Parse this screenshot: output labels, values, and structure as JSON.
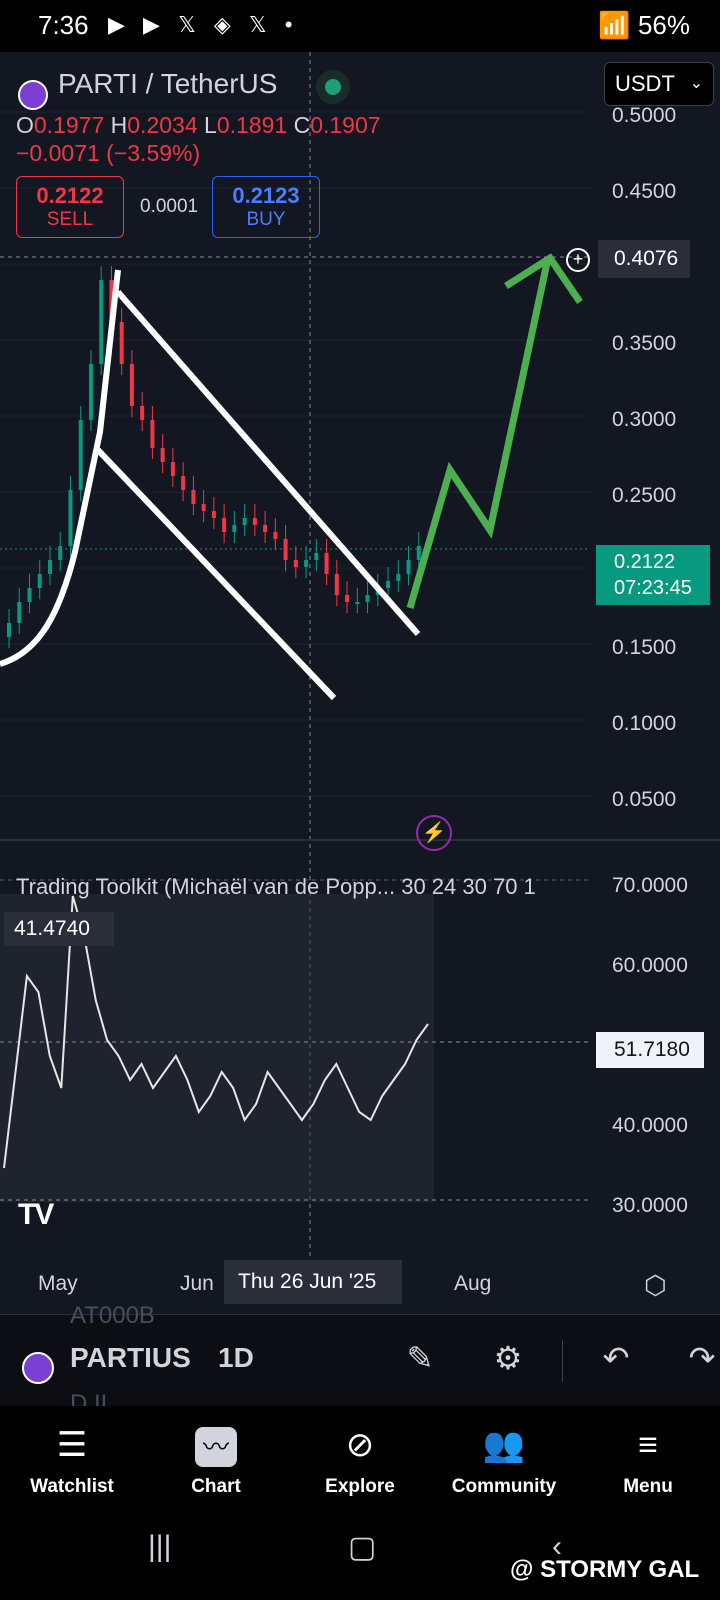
{
  "status_bar": {
    "time": "7:36",
    "battery": "56%",
    "notification_icons": "▶ ▶ 𝕏 ◈ 𝕏 •"
  },
  "header": {
    "symbol": "PARTI / TetherUS",
    "currency": "USDT",
    "ohlc": {
      "o_label": "O",
      "o": "0.1977",
      "h_label": "H",
      "h": "0.2034",
      "l_label": "L",
      "l": "0.1891",
      "c_label": "C",
      "c": "0.1907"
    },
    "change": "−0.0071 (−3.59%)"
  },
  "trade": {
    "sell_price": "0.2122",
    "sell_label": "SELL",
    "spread": "0.0001",
    "buy_price": "0.2123",
    "buy_label": "BUY"
  },
  "price_axis": {
    "ticks": [
      "0.5000",
      "0.4500",
      "0.4076",
      "0.3500",
      "0.3000",
      "0.2500",
      "0.1500",
      "0.1000",
      "0.0500"
    ],
    "crosshair_price": "0.4076",
    "current_price": "0.2122",
    "countdown": "07:23:45"
  },
  "indicator": {
    "title": "Trading Toolkit (Michaël van de Popp... 30 24 30 70 1",
    "hover_value": "41.4740",
    "current_value": "51.7180",
    "ticks": [
      "70.0000",
      "60.0000",
      "40.0000",
      "30.0000"
    ]
  },
  "time_axis": {
    "labels": [
      "May",
      "Jun",
      "Aug"
    ],
    "crosshair_date": "Thu 26 Jun '25"
  },
  "toolbar": {
    "symbol": "PARTIUS",
    "interval": "1D",
    "ghost_above": "AT000B",
    "ghost_below": "D.II"
  },
  "nav": {
    "watchlist": "Watchlist",
    "chart": "Chart",
    "explore": "Explore",
    "community": "Community",
    "menu": "Menu"
  },
  "watermark": "@ STORMY GAL",
  "colors": {
    "background": "#131722",
    "bearish": "#f23645",
    "bullish": "#089981",
    "buy": "#2962ff",
    "arrow": "#4caf50"
  },
  "chart_data": {
    "type": "candlestick",
    "series": [
      {
        "name": "close",
        "values": [
          0.155,
          0.17,
          0.18,
          0.19,
          0.2,
          0.21,
          0.25,
          0.3,
          0.34,
          0.4,
          0.37,
          0.34,
          0.31,
          0.3,
          0.28,
          0.27,
          0.26,
          0.25,
          0.24,
          0.235,
          0.23,
          0.22,
          0.225,
          0.23,
          0.225,
          0.22,
          0.215,
          0.2,
          0.195,
          0.2,
          0.205,
          0.19,
          0.175,
          0.17,
          0.17,
          0.175,
          0.18,
          0.185,
          0.19,
          0.2,
          0.21
        ]
      }
    ],
    "ylim": [
      0.02,
      0.52
    ],
    "indicator_values": [
      34,
      46,
      58,
      56,
      48,
      44,
      68,
      63,
      55,
      50,
      48,
      45,
      47,
      44,
      46,
      48,
      45,
      41,
      43,
      46,
      44,
      40,
      42,
      46,
      44,
      42,
      40,
      42,
      45,
      47,
      44,
      41,
      40,
      43,
      45,
      47,
      50,
      52
    ],
    "indicator_ylim": [
      25,
      75
    ]
  }
}
